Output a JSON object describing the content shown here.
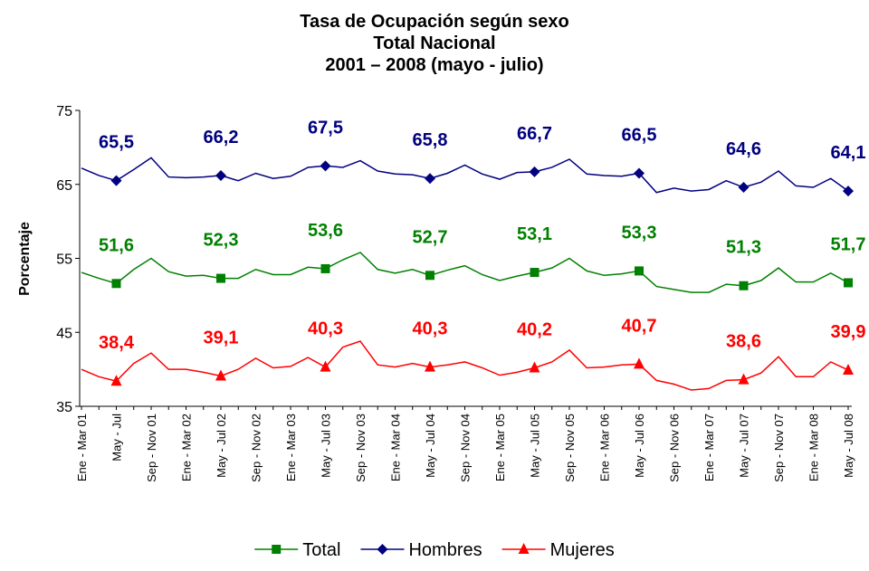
{
  "chart_data": {
    "type": "line",
    "title": [
      "Tasa de Ocupación según sexo",
      "Total Nacional",
      "2001 – 2008 (mayo - julio)"
    ],
    "y_label": "Porcentaje",
    "categories": [
      "Ene - Mar 01",
      null,
      "May - Jul",
      null,
      "Sep - Nov 01",
      null,
      "Ene - Mar 02",
      null,
      "May - Jul 02",
      null,
      "Sep - Nov 02",
      null,
      "Ene - Mar 03",
      null,
      "May - Jul 03",
      null,
      "Sep - Nov 03",
      null,
      "Ene - Mar 04",
      null,
      "May - Jul 04",
      null,
      "Sep - Nov 04",
      null,
      "Ene - Mar 05",
      null,
      "May - Jul 05",
      null,
      "Sep - Nov 05",
      null,
      "Ene - Mar 06",
      null,
      "May - Jul 06",
      null,
      "Sep - Nov 06",
      null,
      "Ene - Mar 07",
      null,
      "May - Jul 07",
      null,
      "Sep - Nov 07",
      null,
      "Ene - Mar 08",
      null,
      "May - Jul 08"
    ],
    "ylim": [
      35,
      75
    ],
    "yticks": [
      35,
      45,
      55,
      65,
      75
    ],
    "grid": false,
    "legend": "bottom",
    "series": [
      {
        "name": "Total",
        "color": "#008000",
        "marker": "square",
        "values": [
          53.1,
          52.3,
          51.6,
          53.5,
          55.0,
          53.2,
          52.6,
          52.7,
          52.3,
          52.3,
          53.5,
          52.8,
          52.8,
          53.8,
          53.6,
          54.8,
          55.8,
          53.5,
          53.0,
          53.5,
          52.7,
          53.4,
          54.0,
          52.8,
          52.0,
          52.6,
          53.1,
          53.7,
          55.0,
          53.3,
          52.7,
          52.9,
          53.3,
          51.2,
          50.8,
          50.4,
          50.4,
          51.5,
          51.3,
          52.0,
          53.7,
          51.8,
          51.8,
          53.0,
          51.7
        ],
        "value_labels": [
          null,
          null,
          "51,6",
          null,
          null,
          null,
          null,
          null,
          "52,3",
          null,
          null,
          null,
          null,
          null,
          "53,6",
          null,
          null,
          null,
          null,
          null,
          "52,7",
          null,
          null,
          null,
          null,
          null,
          "53,1",
          null,
          null,
          null,
          null,
          null,
          "53,3",
          null,
          null,
          null,
          null,
          null,
          "51,3",
          null,
          null,
          null,
          null,
          null,
          "51,7"
        ]
      },
      {
        "name": "Hombres",
        "color": "#000080",
        "marker": "diamond",
        "values": [
          67.2,
          66.2,
          65.5,
          67.0,
          68.6,
          66.0,
          65.9,
          66.0,
          66.2,
          65.5,
          66.5,
          65.8,
          66.1,
          67.3,
          67.5,
          67.3,
          68.2,
          66.8,
          66.4,
          66.3,
          65.8,
          66.5,
          67.6,
          66.4,
          65.7,
          66.6,
          66.7,
          67.3,
          68.4,
          66.4,
          66.2,
          66.1,
          66.5,
          63.9,
          64.5,
          64.1,
          64.3,
          65.5,
          64.6,
          65.3,
          66.8,
          64.8,
          64.6,
          65.8,
          64.1
        ],
        "value_labels": [
          null,
          null,
          "65,5",
          null,
          null,
          null,
          null,
          null,
          "66,2",
          null,
          null,
          null,
          null,
          null,
          "67,5",
          null,
          null,
          null,
          null,
          null,
          "65,8",
          null,
          null,
          null,
          null,
          null,
          "66,7",
          null,
          null,
          null,
          null,
          null,
          "66,5",
          null,
          null,
          null,
          null,
          null,
          "64,6",
          null,
          null,
          null,
          null,
          null,
          "64,1"
        ]
      },
      {
        "name": "Mujeres",
        "color": "#ff0000",
        "marker": "triangle",
        "values": [
          40.0,
          39.0,
          38.4,
          40.8,
          42.2,
          40.0,
          40.0,
          39.6,
          39.1,
          40.0,
          41.5,
          40.2,
          40.4,
          41.6,
          40.3,
          43.0,
          43.8,
          40.6,
          40.3,
          40.8,
          40.3,
          40.6,
          41.0,
          40.2,
          39.2,
          39.6,
          40.2,
          41.0,
          42.6,
          40.2,
          40.3,
          40.6,
          40.7,
          38.5,
          38.0,
          37.2,
          37.4,
          38.5,
          38.6,
          39.5,
          41.7,
          39.0,
          39.0,
          41.0,
          39.9
        ],
        "value_labels": [
          null,
          null,
          "38,4",
          null,
          null,
          null,
          null,
          null,
          "39,1",
          null,
          null,
          null,
          null,
          null,
          "40,3",
          null,
          null,
          null,
          null,
          null,
          "40,3",
          null,
          null,
          null,
          null,
          null,
          "40,2",
          null,
          null,
          null,
          null,
          null,
          "40,7",
          null,
          null,
          null,
          null,
          null,
          "38,6",
          null,
          null,
          null,
          null,
          null,
          "39,9"
        ]
      }
    ]
  }
}
